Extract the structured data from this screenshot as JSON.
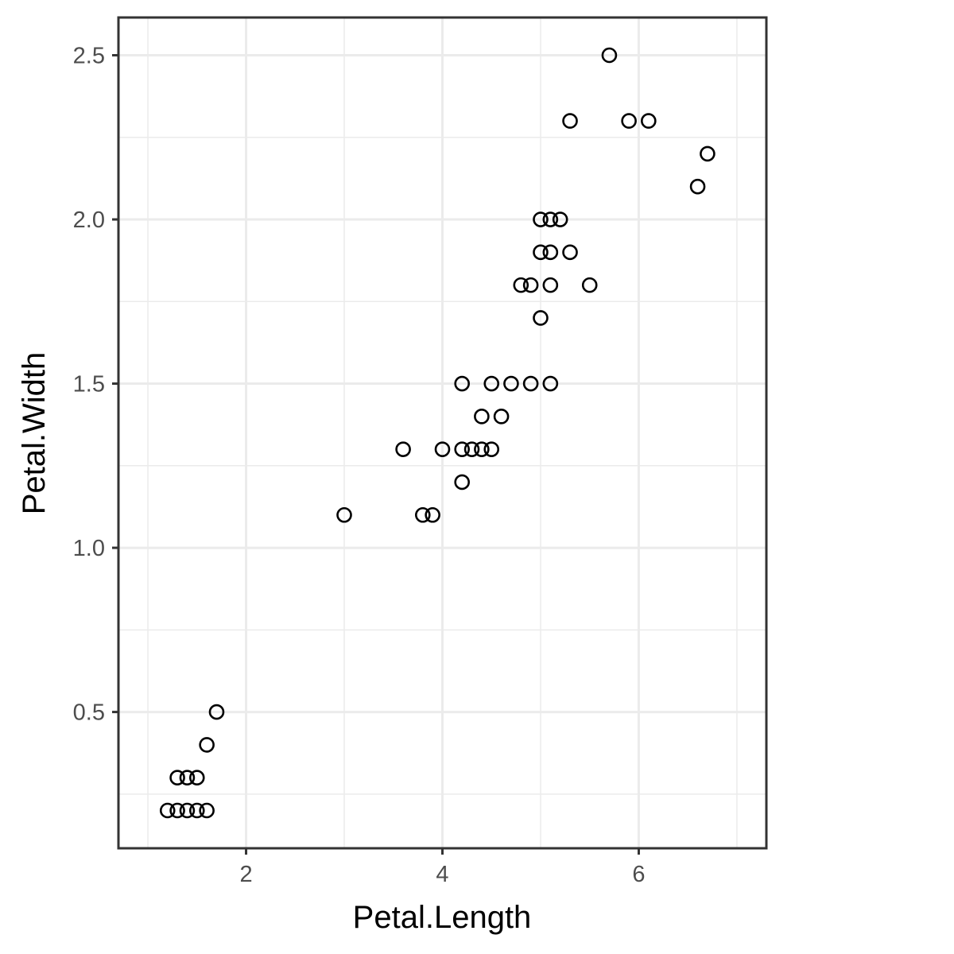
{
  "chart_data": {
    "type": "scatter",
    "title": "",
    "xlabel": "Petal.Length",
    "ylabel": "Petal.Width",
    "xlim": [
      0.7,
      7.3
    ],
    "ylim": [
      0.085,
      2.615
    ],
    "x_major_ticks": [
      2,
      4,
      6
    ],
    "x_minor_ticks": [
      1,
      3,
      5,
      7
    ],
    "y_major_ticks": [
      0.5,
      1.0,
      1.5,
      2.0,
      2.5
    ],
    "y_minor_ticks": [
      0.25,
      0.75,
      1.25,
      1.75,
      2.25
    ],
    "x_tick_labels": [
      "2",
      "4",
      "6"
    ],
    "y_tick_labels": [
      "0.5",
      "1.0",
      "1.5",
      "2.0",
      "2.5"
    ],
    "grid": true,
    "legend": "none",
    "point_color": "#000000",
    "points": [
      {
        "x": 1.2,
        "y": 0.2
      },
      {
        "x": 1.3,
        "y": 0.2
      },
      {
        "x": 1.4,
        "y": 0.2
      },
      {
        "x": 1.5,
        "y": 0.2
      },
      {
        "x": 1.6,
        "y": 0.2
      },
      {
        "x": 1.3,
        "y": 0.3
      },
      {
        "x": 1.4,
        "y": 0.3
      },
      {
        "x": 1.5,
        "y": 0.3
      },
      {
        "x": 1.6,
        "y": 0.4
      },
      {
        "x": 1.7,
        "y": 0.5
      },
      {
        "x": 3.0,
        "y": 1.1
      },
      {
        "x": 3.8,
        "y": 1.1
      },
      {
        "x": 3.9,
        "y": 1.1
      },
      {
        "x": 4.2,
        "y": 1.2
      },
      {
        "x": 3.6,
        "y": 1.3
      },
      {
        "x": 4.0,
        "y": 1.3
      },
      {
        "x": 4.2,
        "y": 1.3
      },
      {
        "x": 4.3,
        "y": 1.3
      },
      {
        "x": 4.4,
        "y": 1.3
      },
      {
        "x": 4.5,
        "y": 1.3
      },
      {
        "x": 4.4,
        "y": 1.4
      },
      {
        "x": 4.6,
        "y": 1.4
      },
      {
        "x": 4.2,
        "y": 1.5
      },
      {
        "x": 4.5,
        "y": 1.5
      },
      {
        "x": 4.7,
        "y": 1.5
      },
      {
        "x": 4.9,
        "y": 1.5
      },
      {
        "x": 5.1,
        "y": 1.5
      },
      {
        "x": 5.0,
        "y": 1.7
      },
      {
        "x": 4.8,
        "y": 1.8
      },
      {
        "x": 4.9,
        "y": 1.8
      },
      {
        "x": 5.1,
        "y": 1.8
      },
      {
        "x": 5.5,
        "y": 1.8
      },
      {
        "x": 5.0,
        "y": 1.9
      },
      {
        "x": 5.1,
        "y": 1.9
      },
      {
        "x": 5.3,
        "y": 1.9
      },
      {
        "x": 5.0,
        "y": 2.0
      },
      {
        "x": 5.1,
        "y": 2.0
      },
      {
        "x": 5.2,
        "y": 2.0
      },
      {
        "x": 6.6,
        "y": 2.1
      },
      {
        "x": 6.7,
        "y": 2.2
      },
      {
        "x": 5.3,
        "y": 2.3
      },
      {
        "x": 5.9,
        "y": 2.3
      },
      {
        "x": 6.1,
        "y": 2.3
      },
      {
        "x": 5.7,
        "y": 2.5
      }
    ]
  }
}
